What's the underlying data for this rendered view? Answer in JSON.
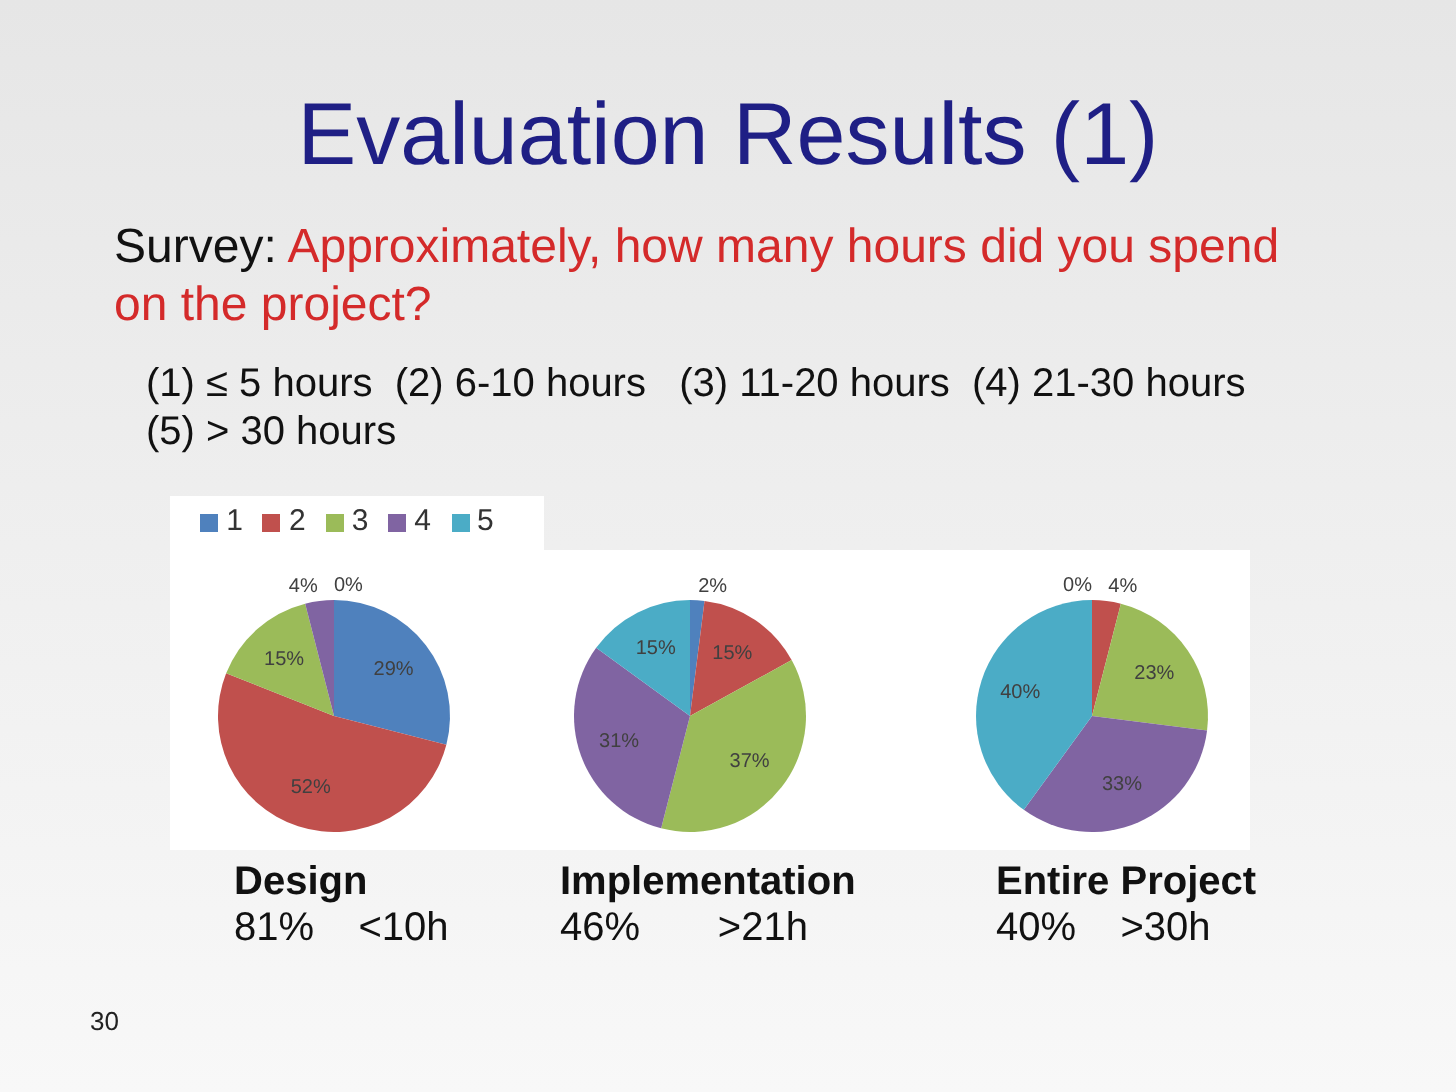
{
  "chart_data": [
    {
      "type": "pie",
      "title": "Design",
      "subtitle": "81%    <10h",
      "categories": [
        "1",
        "2",
        "3",
        "4",
        "5"
      ],
      "values": [
        29,
        52,
        15,
        4,
        0
      ],
      "colors": [
        "#4f81bd",
        "#c0504d",
        "#9bbb59",
        "#8064a2",
        "#4bacc6"
      ],
      "value_labels": [
        "29%",
        "52%",
        "15%",
        "4%",
        "0%"
      ],
      "legend": "top",
      "annotations": [
        "Evaluation Results (1)",
        "Survey: Approximately, how many hours did you spend on the project?",
        "(1) ≤ 5 hours  (2) 6-10 hours   (3) 11-20 hours  (4) 21-30 hours  (5) > 30 hours",
        "30"
      ]
    },
    {
      "type": "pie",
      "title": "Implementation",
      "subtitle": "46%       >21h",
      "categories": [
        null,
        null,
        null,
        null,
        null
      ],
      "values": [
        2,
        15,
        37,
        31,
        15
      ],
      "colors": [
        "#4f81bd",
        "#c0504d",
        "#9bbb59",
        "#8064a2",
        "#4bacc6"
      ],
      "value_labels": [
        "2%",
        "15%",
        "37%",
        "31%",
        "15%"
      ]
    },
    {
      "type": "pie",
      "title": "Entire Project",
      "subtitle": "40%    >30h",
      "categories": [
        null,
        null,
        null,
        null,
        null
      ],
      "values": [
        0,
        4,
        23,
        33,
        40
      ],
      "colors": [
        "#4f81bd",
        "#c0504d",
        "#9bbb59",
        "#8064a2",
        "#4bacc6"
      ],
      "value_labels": [
        "0%",
        "4%",
        "23%",
        "33%",
        "40%"
      ]
    }
  ]
}
